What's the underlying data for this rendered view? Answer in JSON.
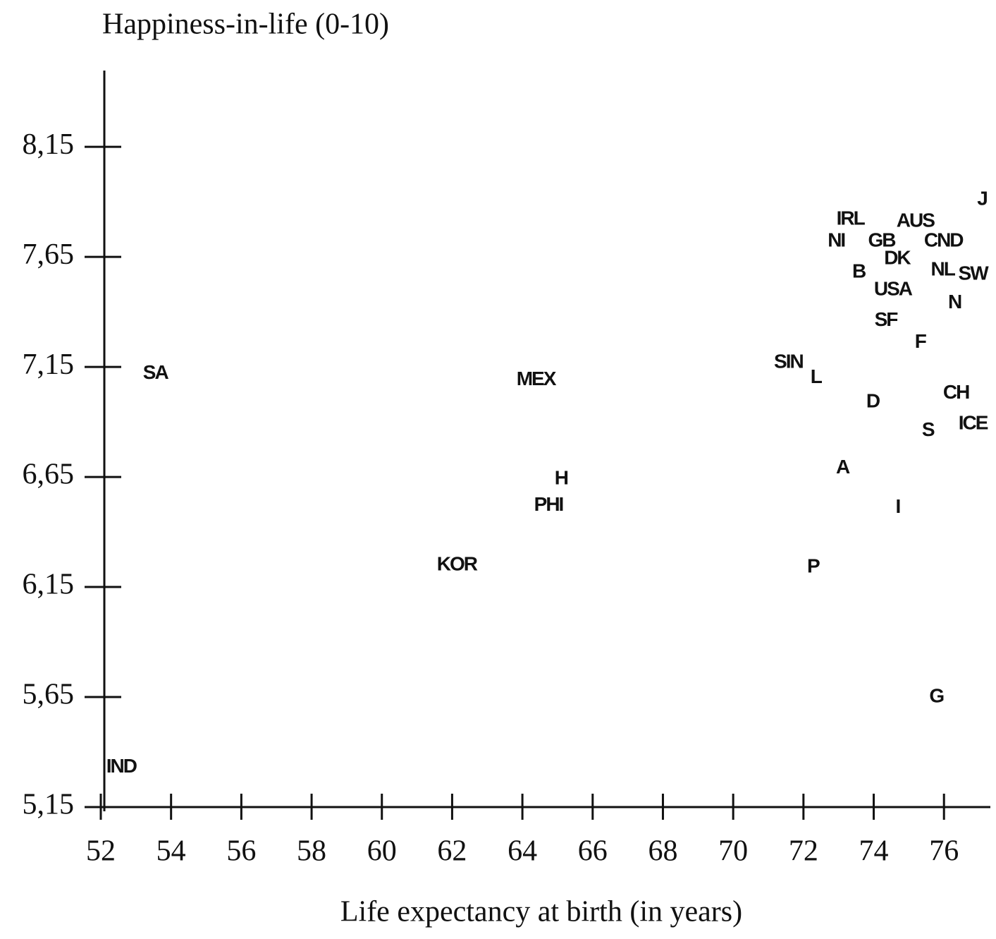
{
  "chart_data": {
    "type": "scatter",
    "title": "Happiness-in-life (0-10)",
    "x_label": "Life expectancy at birth (in years)",
    "labels": [
      "SA",
      "MEX",
      "H",
      "PHI",
      "KOR",
      "IND",
      "SIN",
      "L",
      "P",
      "A",
      "D",
      "I",
      "S",
      "CH",
      "ICE",
      "G",
      "F",
      "SF",
      "USA",
      "N",
      "B",
      "NL",
      "SW",
      "DK",
      "GB",
      "NI",
      "IRL",
      "AUS",
      "CND",
      "J"
    ],
    "x": [
      53.55,
      64.38,
      65.1,
      64.74,
      62.13,
      52.58,
      71.57,
      72.35,
      72.27,
      73.11,
      73.97,
      74.68,
      75.54,
      76.34,
      76.82,
      75.78,
      75.32,
      74.34,
      74.54,
      76.3,
      73.57,
      75.96,
      76.82,
      74.66,
      74.22,
      72.93,
      73.33,
      75.18,
      75.98,
      77.08
    ],
    "y": [
      7.12,
      7.09,
      6.64,
      6.52,
      6.25,
      5.33,
      7.17,
      7.1,
      6.24,
      6.69,
      6.99,
      6.51,
      6.86,
      7.03,
      6.89,
      5.65,
      7.26,
      7.36,
      7.5,
      7.44,
      7.58,
      7.59,
      7.57,
      7.64,
      7.72,
      7.72,
      7.82,
      7.81,
      7.72,
      7.91
    ],
    "color": "#111111",
    "xlim": [
      52,
      77.3
    ],
    "ylim": [
      5.15,
      8.5
    ],
    "xticks": [
      52,
      54,
      56,
      58,
      60,
      62,
      64,
      66,
      68,
      70,
      72,
      74,
      76
    ],
    "yticks": [
      {
        "value": 5.15,
        "label": "5,15"
      },
      {
        "value": 5.65,
        "label": "5,65"
      },
      {
        "value": 6.15,
        "label": "6,15"
      },
      {
        "value": 6.65,
        "label": "6,65"
      },
      {
        "value": 7.15,
        "label": "7,15"
      },
      {
        "value": 7.65,
        "label": "7,65"
      },
      {
        "value": 8.15,
        "label": "8,15"
      }
    ]
  }
}
